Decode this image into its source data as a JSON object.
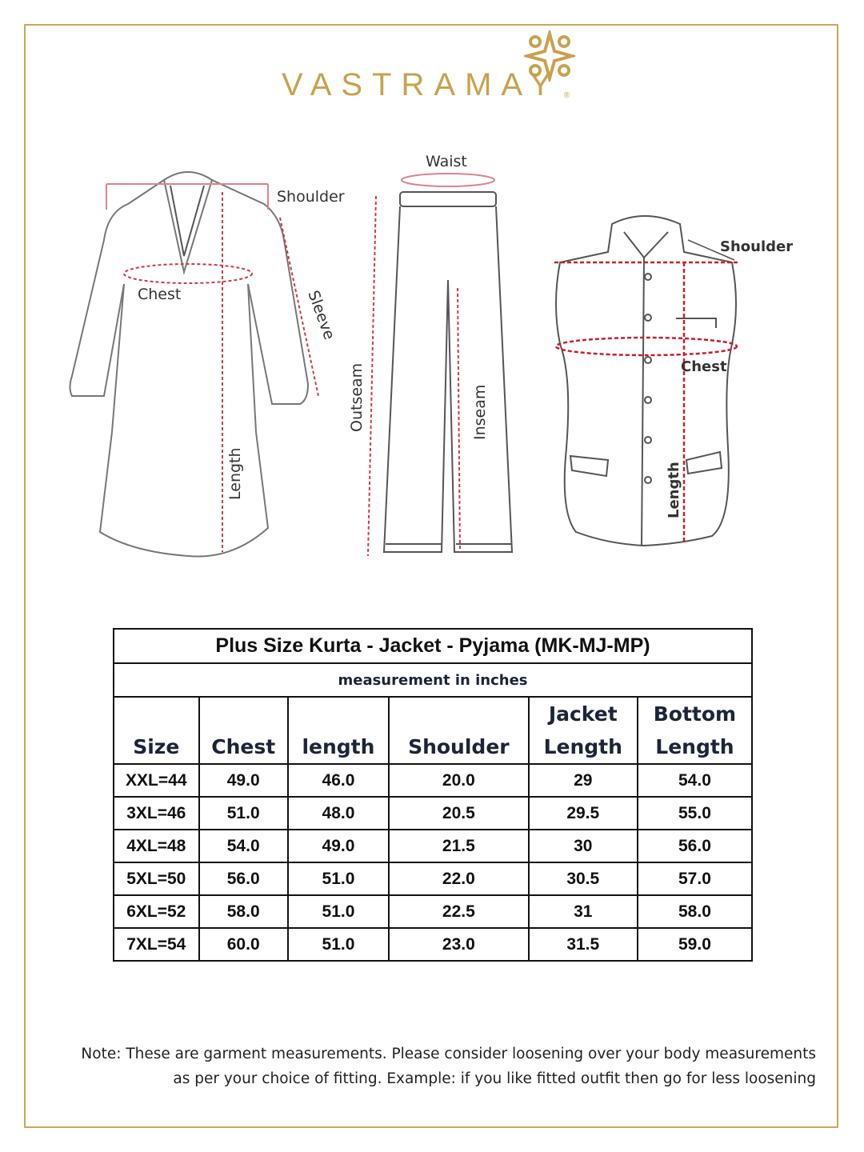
{
  "brand": {
    "name": "VASTRAMAY",
    "registered": "®",
    "color": "#c9a24e"
  },
  "diagram_labels": {
    "kurta": {
      "shoulder": "Shoulder",
      "chest": "Chest",
      "sleeve": "Sleeve",
      "length": "Length"
    },
    "pyjama": {
      "waist": "Waist",
      "outseam": "Outseam",
      "inseam": "Inseam"
    },
    "jacket": {
      "shoulder": "Shoulder",
      "chest": "Chest",
      "length": "Length"
    }
  },
  "table": {
    "title": "Plus Size Kurta - Jacket - Pyjama (MK-MJ-MP)",
    "subtitle": "measurement in inches",
    "headers": [
      {
        "line1": "",
        "line2": "Size"
      },
      {
        "line1": "",
        "line2": "Chest"
      },
      {
        "line1": "",
        "line2": "length"
      },
      {
        "line1": "",
        "line2": "Shoulder"
      },
      {
        "line1": "Jacket",
        "line2": "Length"
      },
      {
        "line1": "Bottom",
        "line2": "Length"
      }
    ],
    "rows": [
      [
        "XXL=44",
        "49.0",
        "46.0",
        "20.0",
        "29",
        "54.0"
      ],
      [
        "3XL=46",
        "51.0",
        "48.0",
        "20.5",
        "29.5",
        "55.0"
      ],
      [
        "4XL=48",
        "54.0",
        "49.0",
        "21.5",
        "30",
        "56.0"
      ],
      [
        "5XL=50",
        "56.0",
        "51.0",
        "22.0",
        "30.5",
        "57.0"
      ],
      [
        "6XL=52",
        "58.0",
        "51.0",
        "22.5",
        "31",
        "58.0"
      ],
      [
        "7XL=54",
        "60.0",
        "51.0",
        "23.0",
        "31.5",
        "59.0"
      ]
    ]
  },
  "note": {
    "line1": "Note: These are garment measurements. Please consider loosening over your body measurements",
    "line2": "as per your choice of fitting. Example: if you like fitted outfit then go for less loosening"
  }
}
